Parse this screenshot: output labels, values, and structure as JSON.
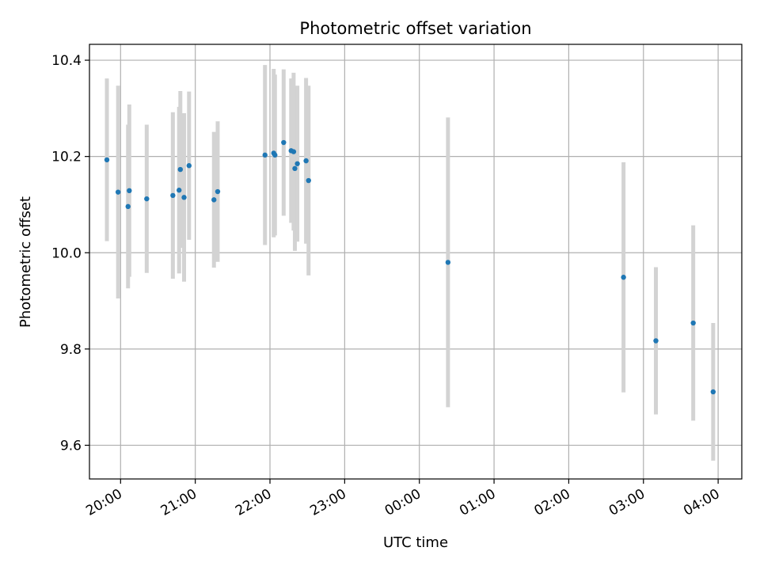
{
  "chart_data": {
    "type": "scatter",
    "title": "Photometric offset variation",
    "xlabel": "UTC time",
    "ylabel": "Photometric offset",
    "ylim": [
      9.53,
      10.433
    ],
    "xlim": [
      "19:35",
      "04:19"
    ],
    "grid": true,
    "x_ticks": [
      "20:00",
      "21:00",
      "22:00",
      "23:00",
      "00:00",
      "01:00",
      "02:00",
      "03:00",
      "04:00"
    ],
    "y_ticks": [
      9.6,
      9.8,
      10.0,
      10.2,
      10.4
    ],
    "y_tick_labels": [
      "9.6",
      "9.8",
      "10.0",
      "10.2",
      "10.4"
    ],
    "colors": {
      "points": "#1f77b4",
      "error_bars": "#d3d3d3",
      "grid": "#b0b0b0"
    },
    "series": [
      {
        "points": [
          {
            "x": "19:49",
            "y": 10.193,
            "err": 0.169
          },
          {
            "x": "19:58",
            "y": 10.126,
            "err": 0.221
          },
          {
            "x": "20:06",
            "y": 10.096,
            "err": 0.17
          },
          {
            "x": "20:07",
            "y": 10.129,
            "err": 0.179
          },
          {
            "x": "20:21",
            "y": 10.112,
            "err": 0.154
          },
          {
            "x": "20:42",
            "y": 10.119,
            "err": 0.173
          },
          {
            "x": "20:47",
            "y": 10.13,
            "err": 0.173
          },
          {
            "x": "20:48",
            "y": 10.173,
            "err": 0.163
          },
          {
            "x": "20:51",
            "y": 10.115,
            "err": 0.175
          },
          {
            "x": "20:55",
            "y": 10.181,
            "err": 0.154
          },
          {
            "x": "21:15",
            "y": 10.11,
            "err": 0.141
          },
          {
            "x": "21:18",
            "y": 10.127,
            "err": 0.146
          },
          {
            "x": "21:56",
            "y": 10.203,
            "err": 0.187
          },
          {
            "x": "22:03",
            "y": 10.207,
            "err": 0.175
          },
          {
            "x": "22:04",
            "y": 10.203,
            "err": 0.167
          },
          {
            "x": "22:11",
            "y": 10.229,
            "err": 0.152
          },
          {
            "x": "22:17",
            "y": 10.212,
            "err": 0.15
          },
          {
            "x": "22:19",
            "y": 10.21,
            "err": 0.164
          },
          {
            "x": "22:20",
            "y": 10.175,
            "err": 0.171
          },
          {
            "x": "22:22",
            "y": 10.185,
            "err": 0.162
          },
          {
            "x": "22:29",
            "y": 10.191,
            "err": 0.172
          },
          {
            "x": "22:31",
            "y": 10.15,
            "err": 0.197
          },
          {
            "x": "00:23",
            "y": 9.98,
            "err": 0.301
          },
          {
            "x": "02:44",
            "y": 9.949,
            "err": 0.239
          },
          {
            "x": "03:10",
            "y": 9.817,
            "err": 0.153
          },
          {
            "x": "03:40",
            "y": 9.854,
            "err": 0.203
          },
          {
            "x": "03:56",
            "y": 9.711,
            "err": 0.143
          }
        ]
      }
    ]
  }
}
